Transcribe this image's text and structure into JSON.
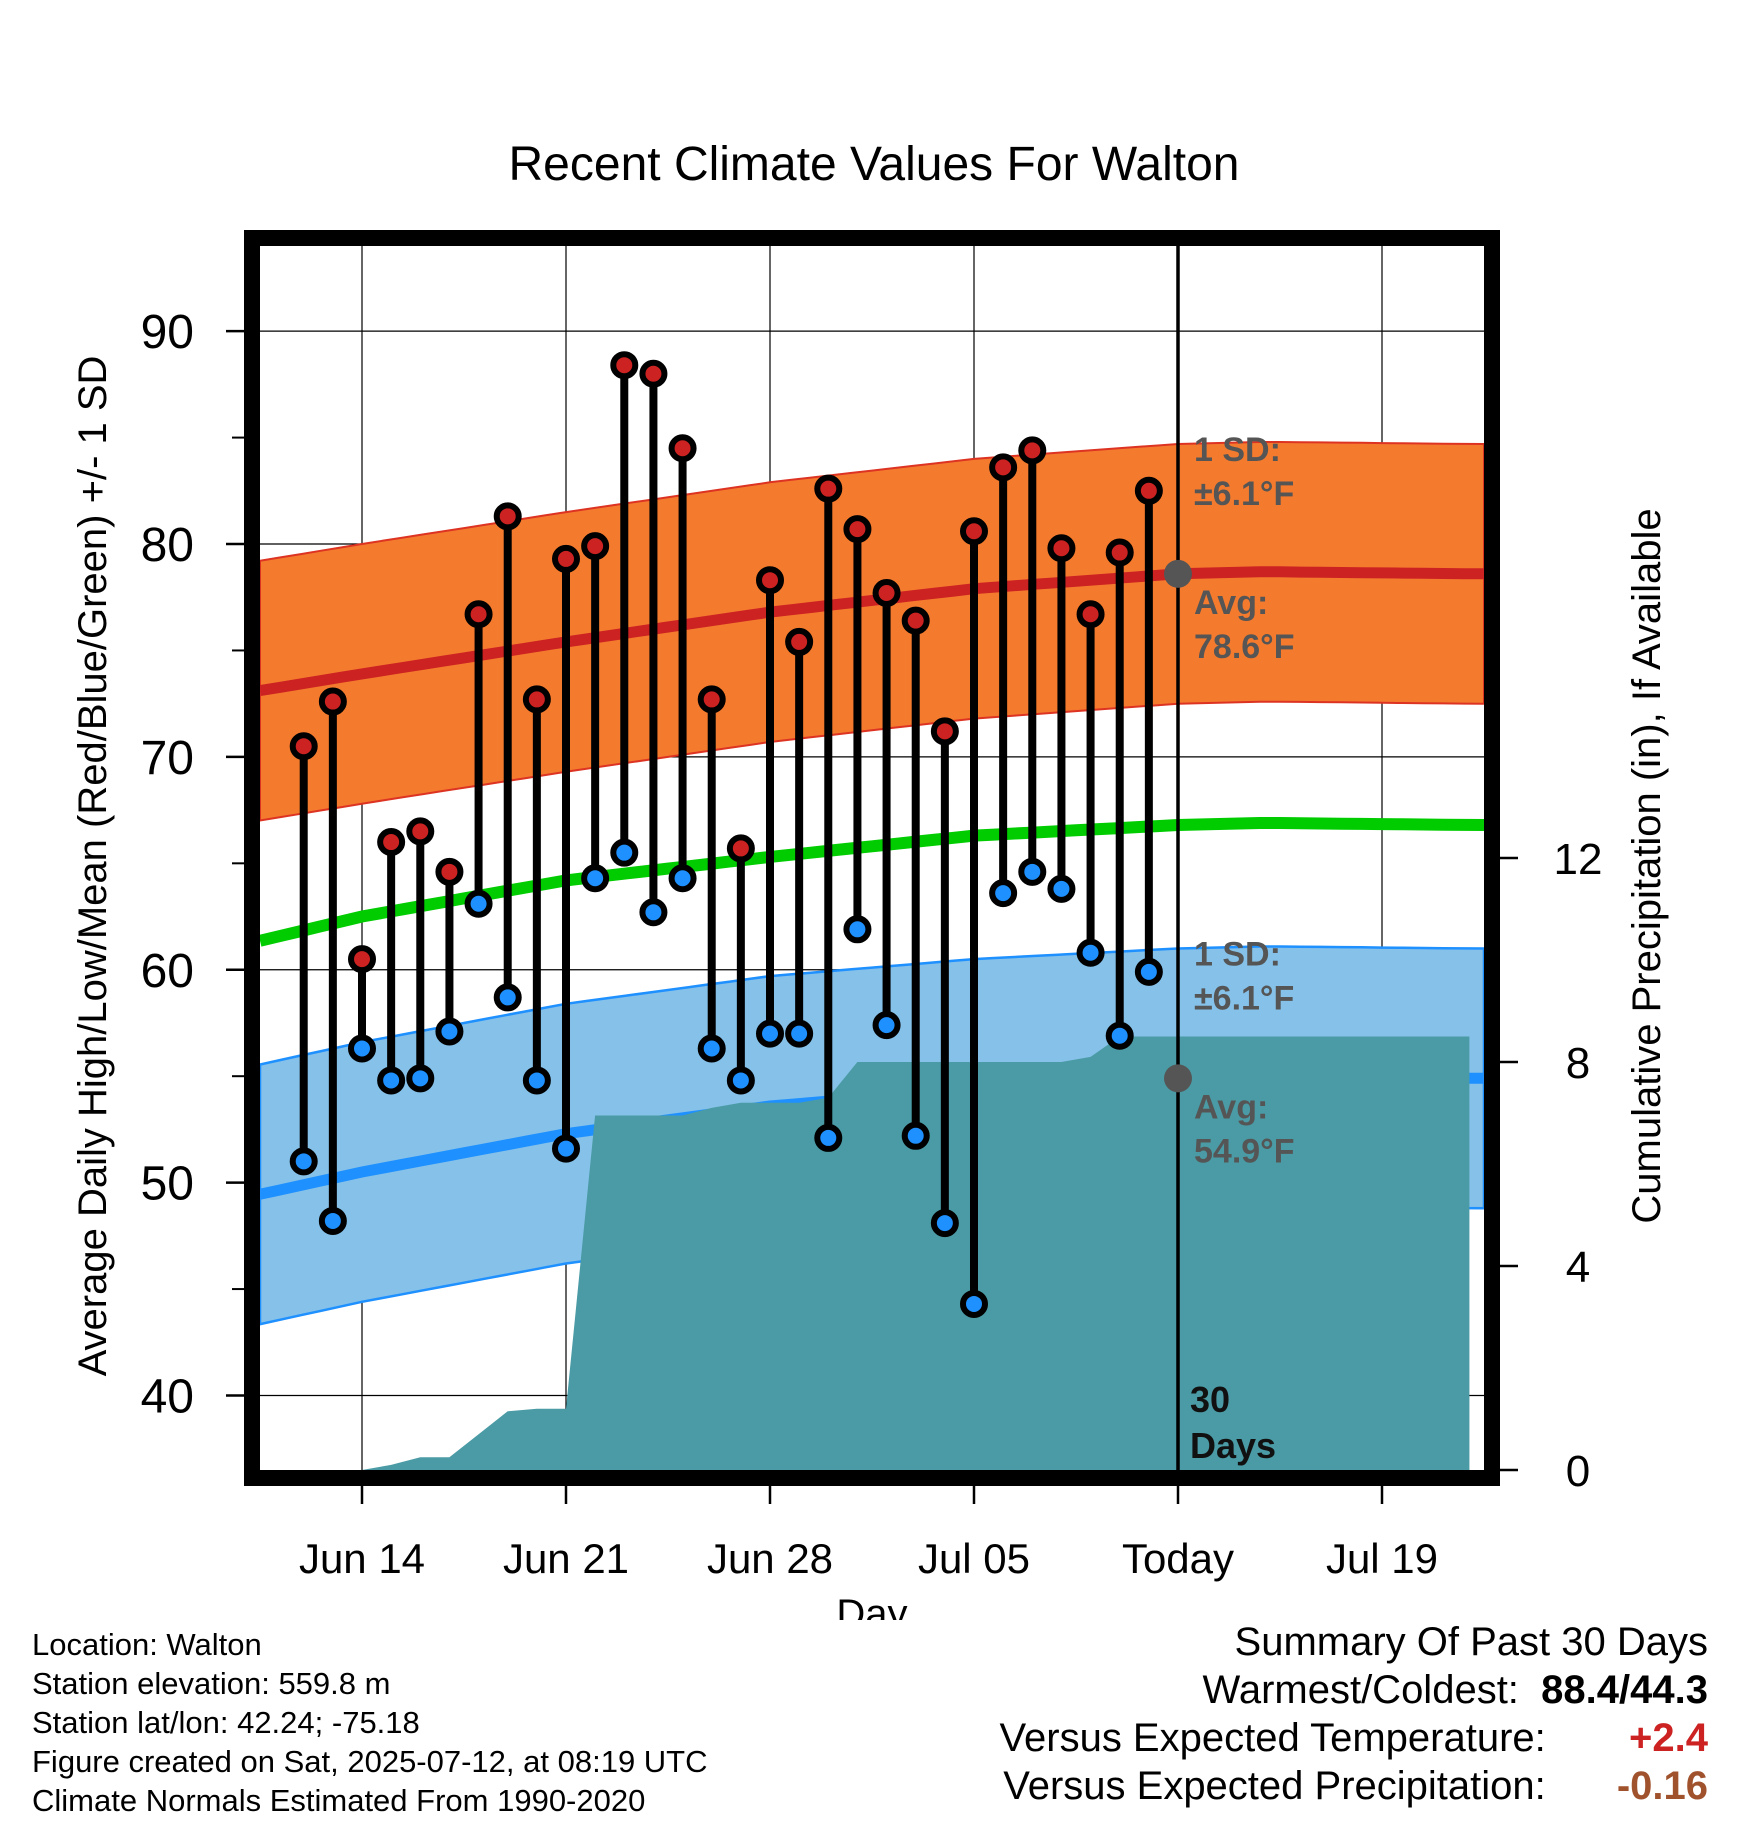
{
  "chart_data": {
    "type": "line",
    "title": "Recent Climate Values For Walton",
    "xlabel": "Day",
    "ylabel": "Average Daily High/Low/Mean (Red/Blue/Green) +/- 1 SD",
    "y2label": "Cumulative Precipitation (in), If Available",
    "ylim": [
      36.5,
      94
    ],
    "y2lim": [
      0,
      24
    ],
    "xlim": [
      "2025-06-10 12:00",
      "2025-07-22 12:00"
    ],
    "y_ticks": [
      "40",
      "50",
      "60",
      "70",
      "80",
      "90"
    ],
    "y2_ticks": [
      "0",
      "4",
      "8",
      "12"
    ],
    "x_tick_dates": [
      "2025-06-14",
      "2025-06-21",
      "2025-06-28",
      "2025-07-05",
      "2025-07-12",
      "2025-07-19"
    ],
    "x_tick_labels": [
      "Jun 14",
      "Jun 21",
      "Jun 28",
      "Jul 05",
      "Today",
      "Jul 19"
    ],
    "grid": true,
    "today": "2025-07-12",
    "today_label": "30 Days",
    "colors": {
      "high": "#cc2222",
      "low": "#1e90ff",
      "mean": "#00cc00",
      "high_band": "#f47b2e",
      "low_band": "#85c1e9",
      "precip": "#4a9ba5",
      "annotation": "#555555"
    },
    "dates": [
      "2025-06-12",
      "2025-06-13",
      "2025-06-14",
      "2025-06-15",
      "2025-06-16",
      "2025-06-17",
      "2025-06-18",
      "2025-06-19",
      "2025-06-20",
      "2025-06-21",
      "2025-06-22",
      "2025-06-23",
      "2025-06-24",
      "2025-06-25",
      "2025-06-26",
      "2025-06-27",
      "2025-06-28",
      "2025-06-29",
      "2025-06-30",
      "2025-07-01",
      "2025-07-02",
      "2025-07-03",
      "2025-07-04",
      "2025-07-05",
      "2025-07-06",
      "2025-07-07",
      "2025-07-08",
      "2025-07-09",
      "2025-07-10",
      "2025-07-11"
    ],
    "high": [
      70.5,
      72.6,
      60.5,
      66.0,
      66.5,
      64.6,
      76.7,
      81.3,
      72.7,
      79.3,
      79.9,
      88.4,
      88.0,
      84.5,
      72.7,
      65.7,
      78.3,
      75.4,
      82.6,
      80.7,
      77.7,
      76.4,
      71.2,
      80.6,
      83.6,
      84.4,
      79.8,
      76.7,
      79.6,
      82.5
    ],
    "low": [
      51.0,
      48.2,
      56.3,
      54.8,
      54.9,
      57.1,
      63.1,
      58.7,
      54.8,
      51.6,
      64.3,
      65.5,
      62.7,
      64.3,
      56.3,
      54.8,
      57.0,
      57.0,
      52.1,
      61.9,
      57.4,
      52.2,
      48.1,
      44.3,
      63.6,
      64.6,
      63.8,
      60.8,
      56.9,
      59.9
    ],
    "normal_dates": [
      "2025-06-10",
      "2025-06-14",
      "2025-06-21",
      "2025-06-28",
      "2025-07-05",
      "2025-07-12",
      "2025-07-15",
      "2025-07-22"
    ],
    "normal_high": [
      73.0,
      73.9,
      75.4,
      76.8,
      77.9,
      78.6,
      78.7,
      78.6
    ],
    "normal_low": [
      49.3,
      50.5,
      52.3,
      53.6,
      54.4,
      54.9,
      55.0,
      54.9
    ],
    "normal_mean": [
      61.2,
      62.5,
      64.2,
      65.3,
      66.3,
      66.8,
      66.9,
      66.8
    ],
    "sd": 6.1,
    "precip_dates": [
      "2025-06-10",
      "2025-06-12",
      "2025-06-13",
      "2025-06-14",
      "2025-06-15",
      "2025-06-16",
      "2025-06-17",
      "2025-06-18",
      "2025-06-19",
      "2025-06-20",
      "2025-06-21",
      "2025-06-22",
      "2025-06-23",
      "2025-06-24",
      "2025-06-25",
      "2025-06-26",
      "2025-06-27",
      "2025-06-28",
      "2025-06-29",
      "2025-06-30",
      "2025-07-01",
      "2025-07-02",
      "2025-07-03",
      "2025-07-04",
      "2025-07-05",
      "2025-07-06",
      "2025-07-07",
      "2025-07-08",
      "2025-07-09",
      "2025-07-10",
      "2025-07-11",
      "2025-07-12",
      "2025-07-22"
    ],
    "precip_cum": [
      0,
      0,
      0,
      0,
      0.1,
      0.25,
      0.25,
      0.7,
      1.15,
      1.2,
      1.2,
      6.95,
      6.95,
      6.95,
      6.95,
      7.1,
      7.2,
      7.2,
      7.2,
      7.3,
      8.0,
      8.0,
      8.0,
      8.0,
      8.0,
      8.0,
      8.0,
      8.0,
      8.1,
      8.5,
      8.5,
      8.5,
      8.5
    ],
    "annotations": {
      "high_sd_label": "1 SD:",
      "high_sd_value": "±6.1°F",
      "high_avg_label": "Avg:",
      "high_avg_value": "78.6°F",
      "low_sd_label": "1 SD:",
      "low_sd_value": "±6.1°F",
      "low_avg_label": "Avg:",
      "low_avg_value": "54.9°F"
    }
  },
  "info": {
    "location": "Location: Walton",
    "elevation": "Station elevation: 559.8 m",
    "latlon": "Station lat/lon: 42.24; -75.18",
    "created": "Figure created on Sat, 2025-07-12, at 08:19 UTC",
    "normals": "Climate Normals Estimated From 1990-2020"
  },
  "summary": {
    "title": "Summary Of Past 30 Days",
    "warm_cold_label": "Warmest/Coldest:",
    "warmest": "88.4",
    "coldest": "44.3",
    "temp_label": "Versus Expected Temperature:",
    "temp_value": "+2.4",
    "temp_color": "#cc2222",
    "precip_label": "Versus Expected Precipitation:",
    "precip_value": "-0.16",
    "precip_color": "#a0522d"
  }
}
